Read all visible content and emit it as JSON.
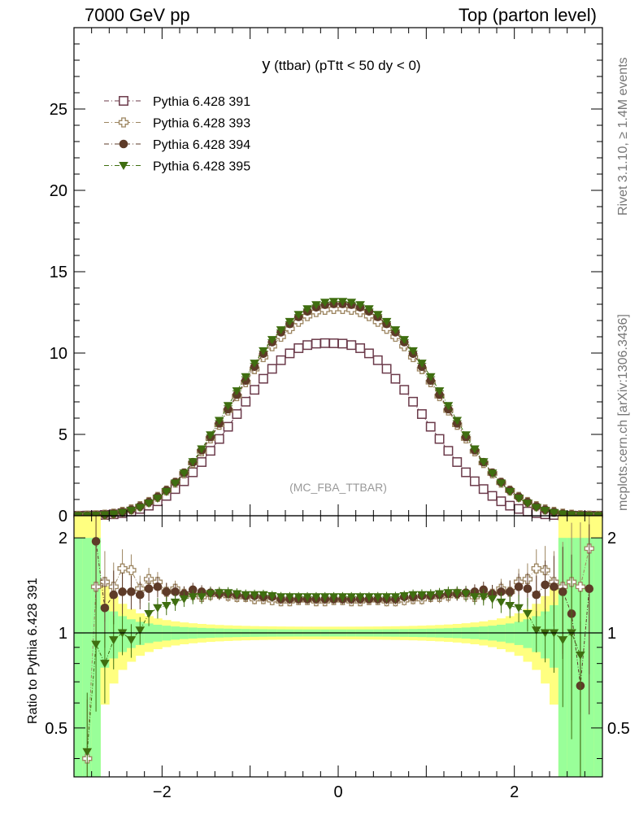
{
  "header": {
    "left": "7000 GeV pp",
    "right": "Top (parton level)"
  },
  "side": {
    "rivet": "Rivet 3.1.10, ≥ 1.4M events",
    "mcplots": "mcplots.cern.ch [arXiv:1306.3436]"
  },
  "chart_data": [
    {
      "type": "scatter",
      "title_main": "y",
      "title_rest": " (ttbar) (pTtt < 50 dy < 0)",
      "watermark": "(MC_FBA_TTBAR)",
      "xlim": [
        -3.0,
        3.0
      ],
      "ylim": [
        0,
        30
      ],
      "yticks": [
        0,
        5,
        10,
        15,
        20,
        25
      ],
      "x": [
        -2.95,
        -2.85,
        -2.75,
        -2.65,
        -2.55,
        -2.45,
        -2.35,
        -2.25,
        -2.15,
        -2.05,
        -1.95,
        -1.85,
        -1.75,
        -1.65,
        -1.55,
        -1.45,
        -1.35,
        -1.25,
        -1.15,
        -1.05,
        -0.95,
        -0.85,
        -0.75,
        -0.65,
        -0.55,
        -0.45,
        -0.35,
        -0.25,
        -0.15,
        -0.05,
        0.05,
        0.15,
        0.25,
        0.35,
        0.45,
        0.55,
        0.65,
        0.75,
        0.85,
        0.95,
        1.05,
        1.15,
        1.25,
        1.35,
        1.45,
        1.55,
        1.65,
        1.75,
        1.85,
        1.95,
        2.05,
        2.15,
        2.25,
        2.35,
        2.45,
        2.55,
        2.65,
        2.75,
        2.85,
        2.95
      ],
      "series": [
        {
          "name": "Pythia 6.428 391",
          "marker": "open-square",
          "color": "#6b3a4a",
          "values": [
            0.0,
            0.01,
            0.02,
            0.05,
            0.09,
            0.16,
            0.26,
            0.42,
            0.62,
            0.89,
            1.22,
            1.64,
            2.12,
            2.67,
            3.3,
            3.99,
            4.72,
            5.47,
            6.25,
            7.01,
            7.74,
            8.42,
            9.03,
            9.56,
            9.98,
            10.3,
            10.49,
            10.58,
            10.61,
            10.6,
            10.58,
            10.49,
            10.3,
            9.98,
            9.56,
            9.03,
            8.42,
            7.74,
            7.01,
            6.25,
            5.47,
            4.72,
            3.99,
            3.3,
            2.67,
            2.12,
            1.64,
            1.22,
            0.89,
            0.62,
            0.42,
            0.26,
            0.16,
            0.09,
            0.05,
            0.02,
            0.01,
            0.0,
            0.0,
            0.0
          ]
        },
        {
          "name": "Pythia 6.428 393",
          "marker": "open-cross",
          "color": "#9c8560",
          "values": [
            0.0,
            0.01,
            0.03,
            0.07,
            0.13,
            0.24,
            0.39,
            0.59,
            0.85,
            1.16,
            1.55,
            2.03,
            2.6,
            3.24,
            3.96,
            4.75,
            5.59,
            6.47,
            7.35,
            8.21,
            9.01,
            9.75,
            10.42,
            11.0,
            11.49,
            11.92,
            12.27,
            12.52,
            12.66,
            12.71,
            12.71,
            12.66,
            12.52,
            12.27,
            11.92,
            11.49,
            11.0,
            10.42,
            9.75,
            9.01,
            8.21,
            7.35,
            6.47,
            5.59,
            4.75,
            3.96,
            3.24,
            2.6,
            2.03,
            1.55,
            1.16,
            0.85,
            0.59,
            0.39,
            0.24,
            0.13,
            0.07,
            0.03,
            0.01,
            0.0
          ]
        },
        {
          "name": "Pythia 6.428 394",
          "marker": "filled-circle",
          "color": "#5e3b28",
          "values": [
            0.0,
            0.01,
            0.03,
            0.07,
            0.13,
            0.23,
            0.37,
            0.58,
            0.84,
            1.16,
            1.56,
            2.06,
            2.64,
            3.29,
            4.03,
            4.84,
            5.68,
            6.55,
            7.44,
            8.31,
            9.16,
            9.96,
            10.67,
            11.28,
            11.79,
            12.22,
            12.56,
            12.81,
            12.97,
            13.02,
            13.02,
            12.97,
            12.81,
            12.56,
            12.22,
            11.79,
            11.28,
            10.67,
            9.96,
            9.16,
            8.31,
            7.44,
            6.55,
            5.68,
            4.84,
            4.03,
            3.29,
            2.64,
            2.06,
            1.56,
            1.16,
            0.84,
            0.58,
            0.37,
            0.23,
            0.13,
            0.07,
            0.03,
            0.01,
            0.0
          ]
        },
        {
          "name": "Pythia 6.428 395",
          "marker": "filled-triangle-down",
          "color": "#3f6e10",
          "values": [
            0.0,
            0.0,
            0.02,
            0.05,
            0.1,
            0.19,
            0.32,
            0.5,
            0.76,
            1.07,
            1.48,
            2.0,
            2.61,
            3.31,
            4.1,
            4.96,
            5.85,
            6.76,
            7.67,
            8.54,
            9.37,
            10.13,
            10.82,
            11.42,
            11.93,
            12.36,
            12.71,
            12.96,
            13.11,
            13.16,
            13.16,
            13.11,
            12.96,
            12.71,
            12.36,
            11.93,
            11.42,
            10.82,
            10.13,
            9.37,
            8.54,
            7.67,
            6.76,
            5.85,
            4.96,
            4.1,
            3.31,
            2.61,
            2.0,
            1.48,
            1.07,
            0.76,
            0.5,
            0.32,
            0.19,
            0.1,
            0.05,
            0.02,
            0.0,
            0.0
          ]
        }
      ]
    },
    {
      "type": "scatter",
      "ylabel": "Ratio to Pythia 6.428 391",
      "xlim": [
        -3.0,
        3.0
      ],
      "ylim": [
        0.35,
        2.35
      ],
      "yticks": [
        0.5,
        1,
        2
      ],
      "ytick_labels": [
        "0.5",
        "1",
        "2"
      ],
      "xticks": [
        -2,
        0,
        2
      ],
      "xtick_labels": [
        "−2",
        "0",
        "2"
      ],
      "band_colors": {
        "outer": "#ffff80",
        "inner": "#99ff99"
      },
      "series": [
        {
          "name": "Pythia 6.428 393",
          "values": [
            null,
            0.4,
            1.4,
            1.45,
            1.4,
            1.6,
            1.58,
            1.38,
            1.48,
            1.45,
            1.35,
            1.38,
            1.33,
            1.32,
            1.3,
            1.32,
            1.33,
            1.31,
            1.3,
            1.3,
            1.28,
            1.28,
            1.27,
            1.26,
            1.26,
            1.27,
            1.27,
            1.26,
            1.26,
            1.27,
            1.27,
            1.26,
            1.26,
            1.27,
            1.27,
            1.26,
            1.26,
            1.27,
            1.28,
            1.28,
            1.3,
            1.3,
            1.31,
            1.33,
            1.32,
            1.3,
            1.32,
            1.33,
            1.38,
            1.35,
            1.45,
            1.48,
            1.6,
            1.58,
            1.45,
            1.4,
            1.45,
            1.4,
            1.85,
            null
          ]
        },
        {
          "name": "Pythia 6.428 394",
          "values": [
            null,
            null,
            1.95,
            1.2,
            1.32,
            1.35,
            1.35,
            1.32,
            1.38,
            1.4,
            1.35,
            1.35,
            1.33,
            1.37,
            1.35,
            1.34,
            1.33,
            1.33,
            1.32,
            1.31,
            1.31,
            1.3,
            1.3,
            1.28,
            1.28,
            1.28,
            1.28,
            1.28,
            1.28,
            1.28,
            1.28,
            1.28,
            1.28,
            1.28,
            1.28,
            1.28,
            1.28,
            1.3,
            1.3,
            1.31,
            1.31,
            1.32,
            1.33,
            1.33,
            1.34,
            1.35,
            1.37,
            1.33,
            1.35,
            1.35,
            1.4,
            1.38,
            1.32,
            1.42,
            1.4,
            1.35,
            1.15,
            0.68,
            1.38,
            null
          ]
        },
        {
          "name": "Pythia 6.428 395",
          "values": [
            null,
            0.42,
            0.92,
            0.8,
            0.95,
            1.0,
            0.95,
            1.02,
            1.15,
            1.2,
            1.22,
            1.25,
            1.28,
            1.3,
            1.3,
            1.33,
            1.34,
            1.34,
            1.33,
            1.32,
            1.32,
            1.32,
            1.31,
            1.3,
            1.3,
            1.3,
            1.3,
            1.3,
            1.3,
            1.3,
            1.3,
            1.3,
            1.3,
            1.3,
            1.3,
            1.3,
            1.3,
            1.31,
            1.32,
            1.32,
            1.32,
            1.33,
            1.34,
            1.34,
            1.33,
            1.3,
            1.3,
            1.28,
            1.25,
            1.22,
            1.2,
            1.15,
            1.02,
            1.0,
            1.0,
            0.95,
            1.0,
            0.85,
            null,
            null
          ]
        }
      ]
    }
  ]
}
